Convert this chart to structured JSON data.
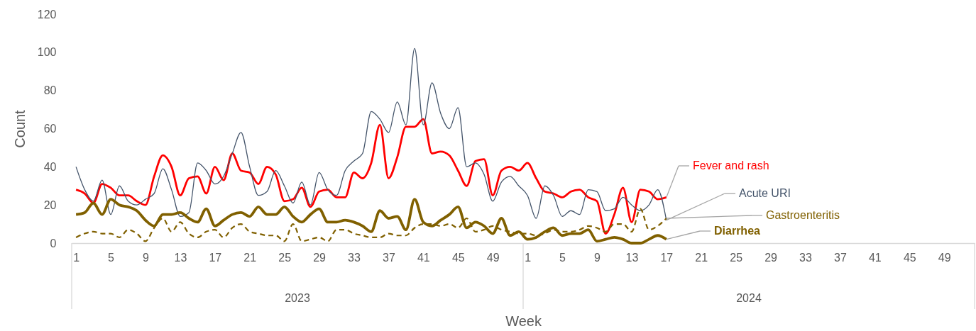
{
  "chart_data": {
    "type": "line",
    "xlabel": "Week",
    "ylabel": "Count",
    "categories": [
      "1",
      null,
      null,
      null,
      "5",
      null,
      null,
      null,
      "9",
      null,
      null,
      null,
      "13",
      null,
      null,
      null,
      "17",
      null,
      null,
      null,
      "21",
      null,
      null,
      null,
      "25",
      null,
      null,
      null,
      "29",
      null,
      null,
      null,
      "33",
      null,
      null,
      null,
      "37",
      null,
      null,
      null,
      "41",
      null,
      null,
      null,
      "45",
      null,
      null,
      null,
      "49",
      null,
      null,
      null,
      "1",
      null,
      null,
      null,
      "5",
      null,
      null,
      null,
      "9",
      null,
      null,
      null,
      "13",
      null,
      null,
      null,
      "17",
      null,
      null,
      null,
      "21",
      null,
      null,
      null,
      "25",
      null,
      null,
      null,
      "29",
      null,
      null,
      null,
      "33",
      null,
      null,
      null,
      "37",
      null,
      null,
      null,
      "41",
      null,
      null,
      null,
      "45",
      null,
      null,
      null,
      "49",
      null,
      null,
      null
    ],
    "annotations": [
      "2023",
      "2024"
    ],
    "ylim": [
      0,
      120
    ],
    "yticks": [
      0,
      20,
      40,
      60,
      80,
      100,
      120
    ],
    "marker": "none",
    "series": [
      {
        "name": "Fever and rash",
        "color": "#ff0000",
        "line_style": "solid",
        "values": [
          28,
          26,
          21,
          31,
          29,
          25,
          25,
          22,
          20,
          35,
          46,
          40,
          25,
          34,
          35,
          26,
          40,
          33,
          47,
          38,
          37,
          31,
          40,
          36,
          22,
          23,
          29,
          19,
          27,
          28,
          24,
          24,
          37,
          34,
          42,
          62,
          34,
          45,
          61,
          61,
          65,
          47,
          48,
          46,
          38,
          30,
          43,
          44,
          25,
          38,
          40,
          38,
          42,
          34,
          27,
          26,
          24,
          27,
          28,
          24,
          22,
          5,
          15,
          29,
          11,
          28,
          27,
          23,
          24,
          null,
          null,
          null,
          null,
          null,
          null,
          null,
          null,
          null,
          null,
          null,
          null,
          null,
          null,
          null,
          null,
          null,
          null,
          null,
          null,
          null,
          null,
          null,
          null,
          null,
          null,
          null,
          null,
          null,
          null,
          null,
          null,
          null,
          null,
          null
        ]
      },
      {
        "name": "Acute URI",
        "color": "#44546a",
        "line_style": "solid",
        "values": [
          40,
          28,
          22,
          33,
          15,
          30,
          22,
          20,
          23,
          26,
          39,
          28,
          14,
          16,
          42,
          38,
          31,
          35,
          47,
          58,
          40,
          25,
          27,
          38,
          30,
          21,
          32,
          20,
          37,
          28,
          25,
          38,
          43,
          47,
          69,
          65,
          58,
          74,
          62,
          102,
          62,
          84,
          68,
          60,
          71,
          40,
          42,
          36,
          22,
          32,
          35,
          30,
          25,
          13,
          30,
          25,
          14,
          17,
          15,
          28,
          27,
          17,
          18,
          24,
          20,
          17,
          20,
          28,
          12,
          null,
          null,
          null,
          null,
          null,
          null,
          null,
          null,
          null,
          null,
          null,
          null,
          null,
          null,
          null,
          null,
          null,
          null,
          null,
          null,
          null,
          null,
          null,
          null,
          null,
          null,
          null,
          null,
          null,
          null,
          null,
          null,
          null,
          null,
          null
        ]
      },
      {
        "name": "Gastroenteritis",
        "color": "#806000",
        "line_style": "dashed",
        "values": [
          3,
          5,
          6,
          5,
          5,
          3,
          7,
          5,
          1,
          8,
          13,
          6,
          11,
          5,
          3,
          6,
          7,
          3,
          8,
          10,
          6,
          5,
          4,
          4,
          1,
          10,
          1,
          2,
          3,
          1,
          7,
          7,
          5,
          4,
          3,
          3,
          5,
          4,
          4,
          8,
          10,
          10,
          9,
          10,
          8,
          13,
          6,
          7,
          9,
          7,
          6,
          5,
          5,
          4,
          5,
          7,
          6,
          6,
          7,
          9,
          8,
          6,
          10,
          10,
          6,
          18,
          7,
          9,
          13,
          null,
          null,
          null,
          null,
          null,
          null,
          null,
          null,
          null,
          null,
          null,
          null,
          null,
          null,
          null,
          null,
          null,
          null,
          null,
          null,
          null,
          null,
          null,
          null,
          null,
          null,
          null,
          null,
          null,
          null,
          null,
          null,
          null,
          null,
          null
        ]
      },
      {
        "name": "Diarrhea",
        "color": "#806000",
        "line_style": "solid",
        "values": [
          15,
          16,
          21,
          15,
          23,
          20,
          19,
          17,
          12,
          9,
          15,
          15,
          16,
          13,
          11,
          18,
          9,
          12,
          15,
          16,
          14,
          19,
          15,
          15,
          19,
          14,
          11,
          15,
          18,
          11,
          11,
          12,
          11,
          9,
          6,
          17,
          13,
          14,
          7,
          23,
          11,
          9,
          12,
          15,
          19,
          8,
          11,
          9,
          5,
          13,
          4,
          6,
          2,
          3,
          6,
          8,
          4,
          5,
          5,
          7,
          1,
          2,
          3,
          2,
          0,
          0,
          2,
          4,
          2,
          null,
          null,
          null,
          null,
          null,
          null,
          null,
          null,
          null,
          null,
          null,
          null,
          null,
          null,
          null,
          null,
          null,
          null,
          null,
          null,
          null,
          null,
          null,
          null,
          null,
          null,
          null,
          null,
          null,
          null,
          null,
          null,
          null,
          null,
          null
        ]
      }
    ]
  }
}
